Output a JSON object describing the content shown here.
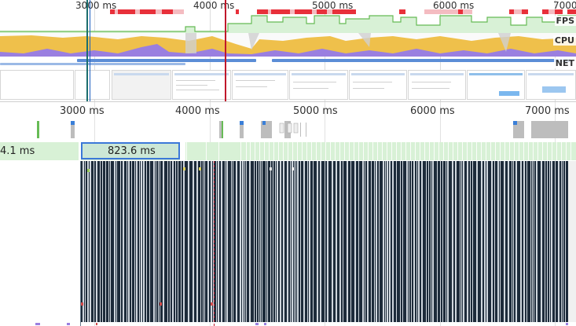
{
  "overview": {
    "ticks": [
      "3000 ms",
      "4000 ms",
      "5000 ms",
      "6000 ms",
      "7000"
    ],
    "track_labels": {
      "fps": "FPS",
      "cpu": "CPU",
      "net": "NET"
    }
  },
  "timeline": {
    "ticks": [
      "3000 ms",
      "4000 ms",
      "5000 ms",
      "6000 ms",
      "7000 ms"
    ]
  },
  "frames": {
    "left_partial": "4.1 ms",
    "selected": "823.6 ms"
  },
  "colors": {
    "fps_green": "#8fd68f",
    "cpu_yellow": "#efc04b",
    "cpu_purple": "#9a7fe0",
    "net_blue": "#5b8dd6",
    "selection_blue": "#3b78d8",
    "current_time_red": "#c0182b",
    "flame_dark": "#1d2b3a"
  }
}
